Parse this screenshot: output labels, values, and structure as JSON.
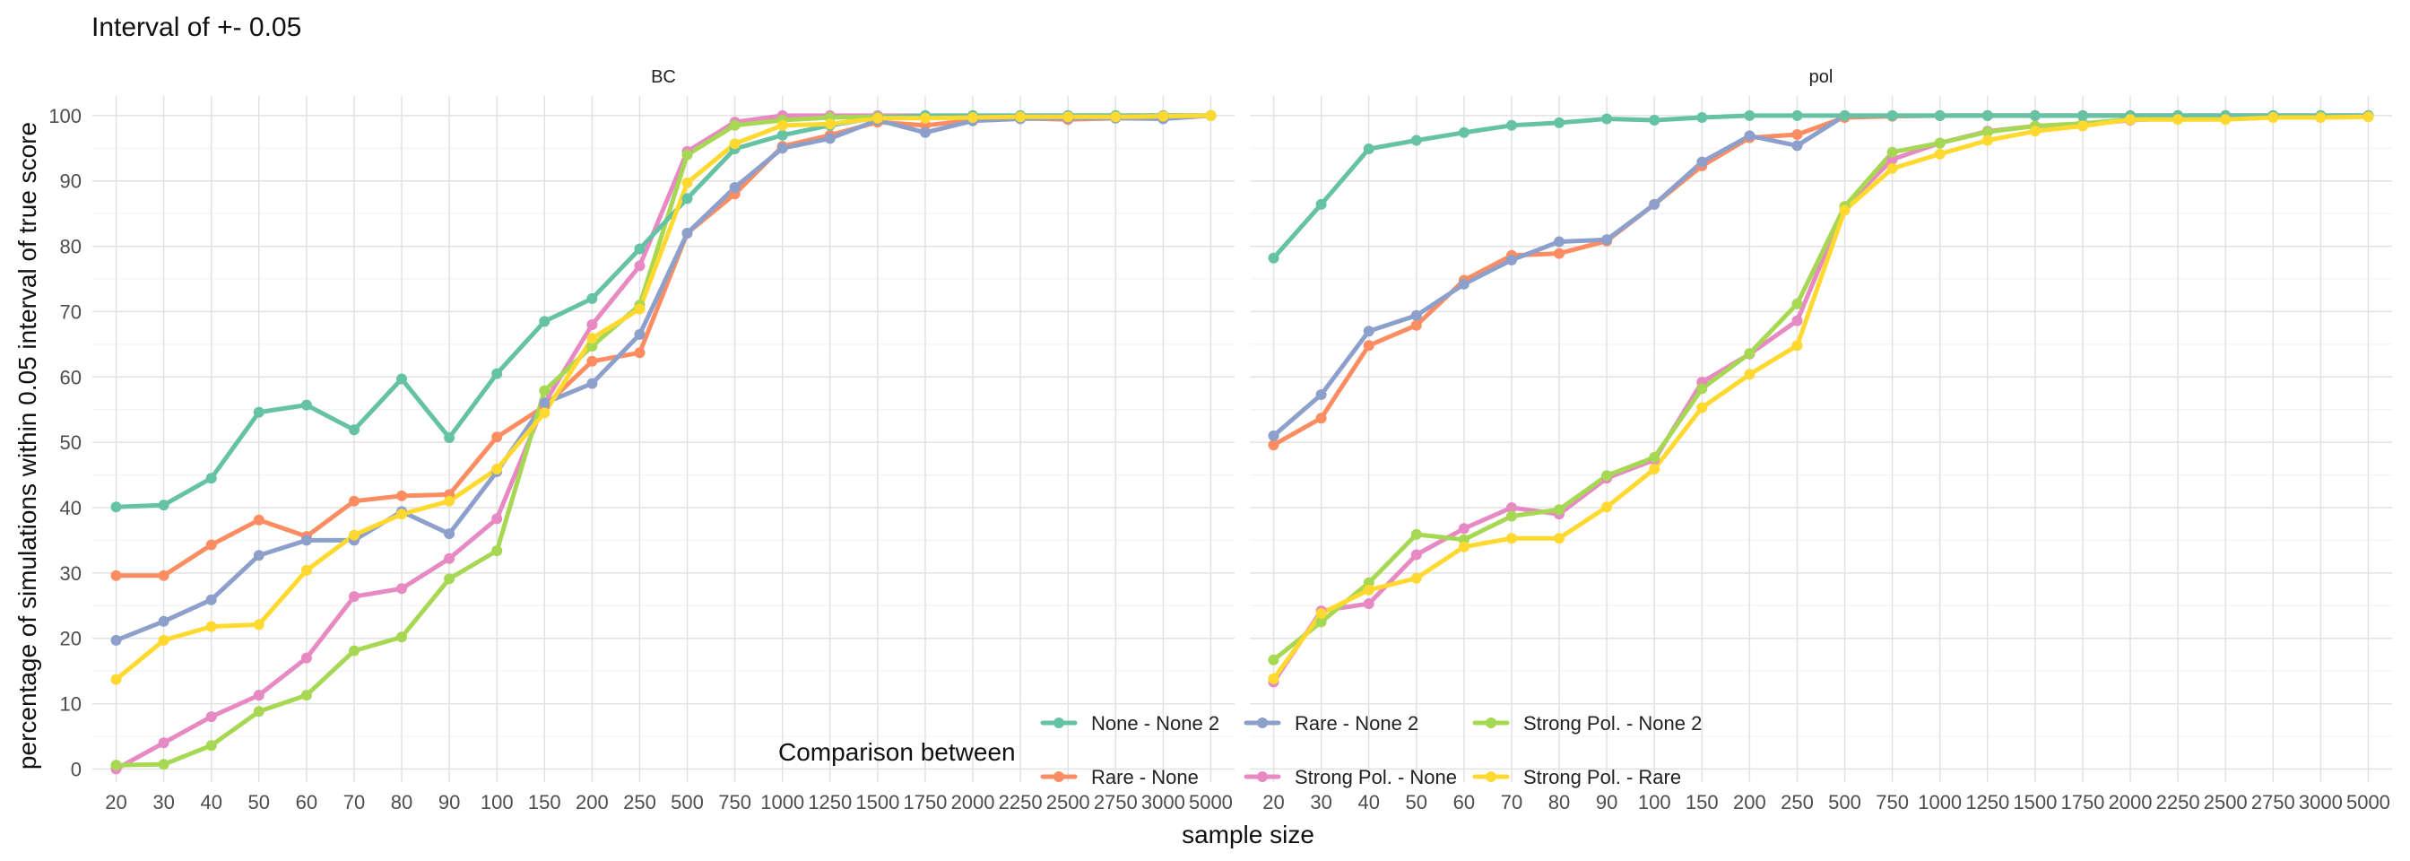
{
  "chart_data": {
    "type": "line",
    "title": "Interval of +- 0.05",
    "xlabel": "sample size",
    "ylabel": "percentage of simulations within 0.05 interval of true score",
    "ylim": [
      -2,
      103
    ],
    "yticks": [
      0,
      10,
      20,
      30,
      40,
      50,
      60,
      70,
      80,
      90,
      100
    ],
    "categories": [
      "20",
      "30",
      "40",
      "50",
      "60",
      "70",
      "80",
      "90",
      "100",
      "150",
      "200",
      "250",
      "500",
      "750",
      "1000",
      "1250",
      "1500",
      "1750",
      "2000",
      "2250",
      "2500",
      "2750",
      "3000",
      "5000"
    ],
    "grid": true,
    "legend": {
      "title": "Comparison between",
      "position": "bottom",
      "entries": [
        "None - None 2",
        "Rare - None",
        "Rare - None 2",
        "Strong Pol. - None",
        "Strong Pol. - None 2",
        "Strong Pol. - Rare"
      ]
    },
    "colors": {
      "None - None 2": "#66c2a5",
      "Rare - None": "#fc8d62",
      "Rare - None 2": "#8da0cb",
      "Strong Pol. - None": "#e78ac3",
      "Strong Pol. - None 2": "#a6d854",
      "Strong Pol. - Rare": "#ffd92f"
    },
    "panels": [
      {
        "name": "BC",
        "series": [
          {
            "name": "Strong Pol. - None",
            "values": [
              0,
              4,
              8,
              11.3,
              17,
              26.4,
              27.6,
              32.2,
              38.3,
              56,
              68,
              77,
              94.5,
              99,
              100,
              100,
              100,
              100,
              100,
              100,
              100,
              100,
              100,
              100
            ]
          },
          {
            "name": "Rare - None",
            "values": [
              29.6,
              29.6,
              34.3,
              38.1,
              35.6,
              41,
              41.8,
              42,
              50.8,
              55.5,
              62.4,
              63.7,
              82,
              88,
              95.3,
              97,
              99,
              98.5,
              99.3,
              99.6,
              99.4,
              99.6,
              99.7,
              100
            ]
          },
          {
            "name": "Rare - None 2",
            "values": [
              19.7,
              22.6,
              25.9,
              32.7,
              35,
              35,
              39.4,
              36,
              45.5,
              56,
              59,
              66.5,
              82,
              89,
              95,
              96.5,
              99.3,
              97.4,
              99.2,
              99.5,
              99.6,
              99.6,
              99.5,
              100
            ]
          },
          {
            "name": "Strong Pol. - None 2",
            "values": [
              0.6,
              0.7,
              3.6,
              8.8,
              11.3,
              18.1,
              20.2,
              29.1,
              33.4,
              57.9,
              64.7,
              71,
              94,
              98.5,
              99.3,
              99.7,
              99.8,
              99.9,
              99.9,
              99.9,
              100,
              100,
              100,
              100
            ]
          },
          {
            "name": "None - None 2",
            "values": [
              40.1,
              40.4,
              44.5,
              54.6,
              55.7,
              51.9,
              59.7,
              50.7,
              60.5,
              68.5,
              72,
              79.6,
              87.3,
              94.9,
              97,
              98.5,
              99.7,
              100,
              100,
              100,
              100,
              100,
              100,
              100
            ]
          },
          {
            "name": "Strong Pol. - Rare",
            "values": [
              13.7,
              19.7,
              21.8,
              22.1,
              30.4,
              35.8,
              39,
              41,
              45.9,
              54.5,
              65.9,
              70.4,
              89.7,
              95.7,
              98.5,
              98.7,
              99.6,
              99.6,
              99.7,
              99.8,
              99.8,
              99.8,
              99.9,
              100
            ]
          }
        ]
      },
      {
        "name": "pol",
        "series": [
          {
            "name": "Strong Pol. - None",
            "values": [
              13.3,
              24.2,
              25.3,
              32.8,
              36.8,
              40,
              39,
              44.5,
              47.3,
              59.2,
              63.5,
              68.6,
              86,
              93.3,
              95.8,
              97.6,
              98.4,
              98.6,
              99.3,
              99.6,
              99.6,
              99.8,
              99.8,
              99.9
            ]
          },
          {
            "name": "Rare - None",
            "values": [
              49.6,
              53.7,
              64.8,
              67.9,
              74.8,
              78.6,
              78.9,
              80.8,
              86.4,
              92.3,
              96.6,
              97.1,
              99.7,
              99.9,
              100,
              100,
              100,
              100,
              100,
              100,
              100,
              100,
              100,
              100
            ]
          },
          {
            "name": "Rare - None 2",
            "values": [
              51,
              57.3,
              67,
              69.4,
              74.2,
              77.9,
              80.7,
              81,
              86.4,
              92.9,
              96.9,
              95.4,
              100,
              100,
              100,
              100,
              100,
              100,
              100,
              100,
              100,
              100,
              100,
              100
            ]
          },
          {
            "name": "Strong Pol. - None 2",
            "values": [
              16.7,
              22.5,
              28.5,
              35.9,
              35.1,
              38.7,
              39.7,
              44.9,
              47.7,
              58.2,
              63.6,
              71.2,
              86.1,
              94.4,
              95.8,
              97.5,
              98.4,
              98.8,
              99.4,
              99.5,
              99.6,
              99.8,
              99.8,
              99.9
            ]
          },
          {
            "name": "None - None 2",
            "values": [
              78.2,
              86.4,
              94.9,
              96.2,
              97.4,
              98.5,
              98.9,
              99.5,
              99.3,
              99.7,
              100,
              100,
              100,
              100,
              100,
              100,
              100,
              100,
              100,
              100,
              100,
              100,
              100,
              100
            ]
          },
          {
            "name": "Strong Pol. - Rare",
            "values": [
              13.8,
              23.8,
              27.4,
              29.2,
              34,
              35.3,
              35.3,
              40.1,
              45.9,
              55.3,
              60.4,
              64.8,
              85.5,
              91.9,
              94.1,
              96.2,
              97.6,
              98.4,
              99.4,
              99.4,
              99.4,
              99.7,
              99.7,
              99.8
            ]
          }
        ]
      }
    ]
  }
}
